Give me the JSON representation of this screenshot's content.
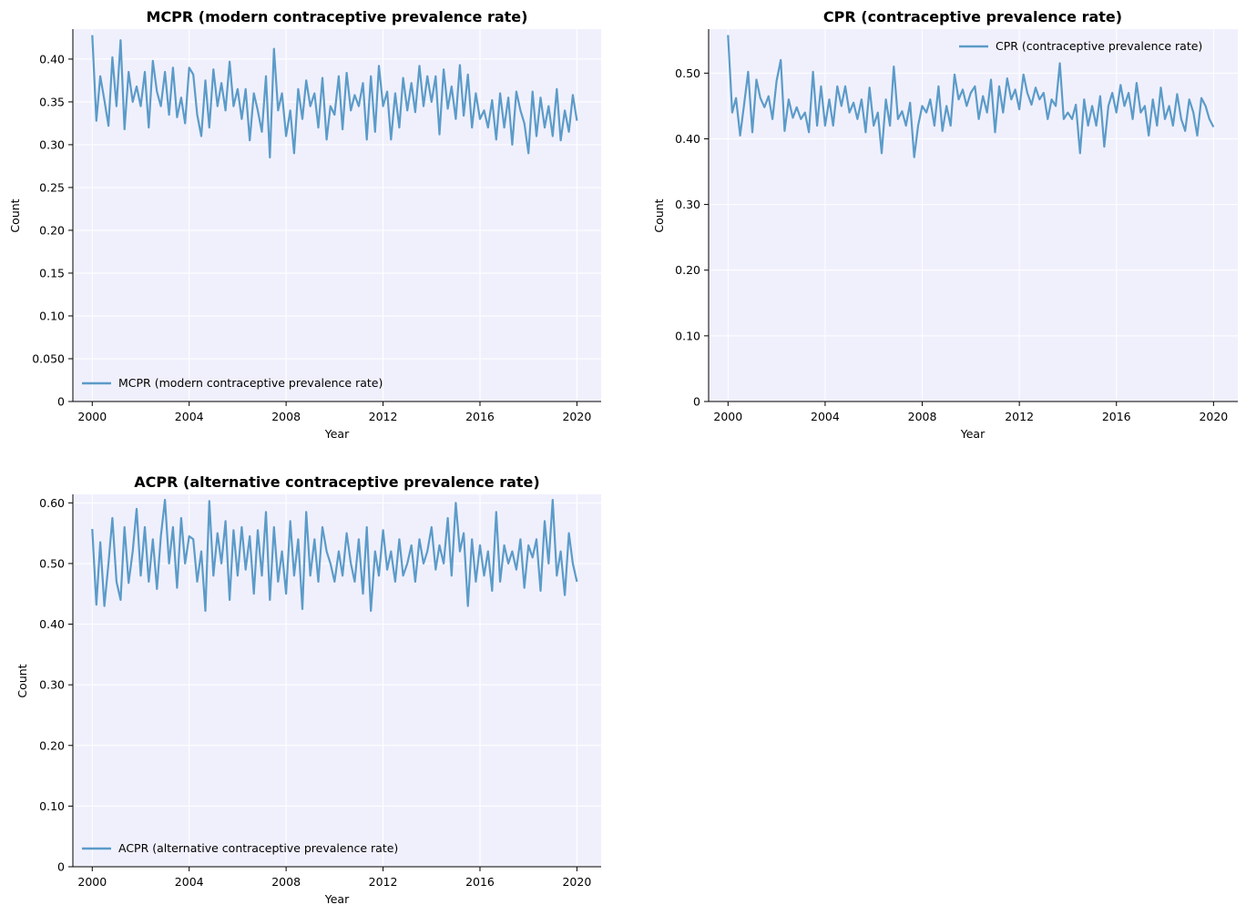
{
  "chart_data": [
    {
      "type": "line",
      "title": "MCPR (modern contraceptive prevalence rate)",
      "xlabel": "Year",
      "ylabel": "Count",
      "xlim": [
        1999.2,
        2021.0
      ],
      "ylim": [
        0,
        0.435
      ],
      "xticks": [
        2000,
        2004,
        2008,
        2012,
        2016,
        2020
      ],
      "xtick_labels": [
        "2000",
        "2004",
        "2008",
        "2012",
        "2016",
        "2020"
      ],
      "yticks": [
        0,
        0.05,
        0.1,
        0.15,
        0.2,
        0.25,
        0.3,
        0.35,
        0.4
      ],
      "ytick_labels": [
        "0",
        "0.050",
        "0.10",
        "0.15",
        "0.20",
        "0.25",
        "0.30",
        "0.35",
        "0.40"
      ],
      "legend": "MCPR (modern contraceptive prevalence rate)",
      "legend_position": "lower-left",
      "color": "#5b9bc8",
      "x": [
        2000.0,
        2000.17,
        2000.33,
        2000.5,
        2000.67,
        2000.83,
        2001.0,
        2001.17,
        2001.33,
        2001.5,
        2001.67,
        2001.83,
        2002.0,
        2002.17,
        2002.33,
        2002.5,
        2002.67,
        2002.83,
        2003.0,
        2003.17,
        2003.33,
        2003.5,
        2003.67,
        2003.83,
        2004.0,
        2004.17,
        2004.33,
        2004.5,
        2004.67,
        2004.83,
        2005.0,
        2005.17,
        2005.33,
        2005.5,
        2005.67,
        2005.83,
        2006.0,
        2006.17,
        2006.33,
        2006.5,
        2006.67,
        2006.83,
        2007.0,
        2007.17,
        2007.33,
        2007.5,
        2007.67,
        2007.83,
        2008.0,
        2008.17,
        2008.33,
        2008.5,
        2008.67,
        2008.83,
        2009.0,
        2009.17,
        2009.33,
        2009.5,
        2009.67,
        2009.83,
        2010.0,
        2010.17,
        2010.33,
        2010.5,
        2010.67,
        2010.83,
        2011.0,
        2011.17,
        2011.33,
        2011.5,
        2011.67,
        2011.83,
        2012.0,
        2012.17,
        2012.33,
        2012.5,
        2012.67,
        2012.83,
        2013.0,
        2013.17,
        2013.33,
        2013.5,
        2013.67,
        2013.83,
        2014.0,
        2014.17,
        2014.33,
        2014.5,
        2014.67,
        2014.83,
        2015.0,
        2015.17,
        2015.33,
        2015.5,
        2015.67,
        2015.83,
        2016.0,
        2016.17,
        2016.33,
        2016.5,
        2016.67,
        2016.83,
        2017.0,
        2017.17,
        2017.33,
        2017.5,
        2017.67,
        2017.83,
        2018.0,
        2018.17,
        2018.33,
        2018.5,
        2018.67,
        2018.83,
        2019.0,
        2019.17,
        2019.33,
        2019.5,
        2019.67,
        2019.83,
        2020.0
      ],
      "values": [
        0.428,
        0.328,
        0.38,
        0.352,
        0.322,
        0.402,
        0.345,
        0.422,
        0.318,
        0.385,
        0.35,
        0.368,
        0.345,
        0.385,
        0.32,
        0.398,
        0.362,
        0.345,
        0.385,
        0.335,
        0.39,
        0.332,
        0.355,
        0.325,
        0.39,
        0.382,
        0.335,
        0.31,
        0.375,
        0.32,
        0.388,
        0.345,
        0.372,
        0.34,
        0.397,
        0.345,
        0.365,
        0.33,
        0.365,
        0.305,
        0.36,
        0.34,
        0.315,
        0.38,
        0.285,
        0.412,
        0.34,
        0.36,
        0.31,
        0.34,
        0.29,
        0.365,
        0.33,
        0.375,
        0.345,
        0.36,
        0.32,
        0.378,
        0.306,
        0.345,
        0.335,
        0.38,
        0.318,
        0.384,
        0.34,
        0.358,
        0.345,
        0.372,
        0.306,
        0.38,
        0.315,
        0.392,
        0.345,
        0.362,
        0.306,
        0.36,
        0.32,
        0.378,
        0.34,
        0.372,
        0.338,
        0.392,
        0.345,
        0.38,
        0.35,
        0.38,
        0.312,
        0.388,
        0.342,
        0.368,
        0.33,
        0.393,
        0.334,
        0.382,
        0.32,
        0.36,
        0.33,
        0.34,
        0.32,
        0.352,
        0.306,
        0.36,
        0.32,
        0.355,
        0.3,
        0.362,
        0.34,
        0.325,
        0.29,
        0.362,
        0.31,
        0.355,
        0.32,
        0.345,
        0.31,
        0.365,
        0.305,
        0.34,
        0.315,
        0.358,
        0.328
      ]
    },
    {
      "type": "line",
      "title": "CPR (contraceptive prevalence rate)",
      "xlabel": "Year",
      "ylabel": "Count",
      "xlim": [
        1999.2,
        2021.0
      ],
      "ylim": [
        0,
        0.567
      ],
      "xticks": [
        2000,
        2004,
        2008,
        2012,
        2016,
        2020
      ],
      "xtick_labels": [
        "2000",
        "2004",
        "2008",
        "2012",
        "2016",
        "2020"
      ],
      "yticks": [
        0,
        0.1,
        0.2,
        0.3,
        0.4,
        0.5
      ],
      "ytick_labels": [
        "0",
        "0.10",
        "0.20",
        "0.30",
        "0.40",
        "0.50"
      ],
      "legend": "CPR (contraceptive prevalence rate)",
      "legend_position": "upper-right",
      "color": "#5b9bc8",
      "x": [
        2000.0,
        2000.17,
        2000.33,
        2000.5,
        2000.67,
        2000.83,
        2001.0,
        2001.17,
        2001.33,
        2001.5,
        2001.67,
        2001.83,
        2002.0,
        2002.17,
        2002.33,
        2002.5,
        2002.67,
        2002.83,
        2003.0,
        2003.17,
        2003.33,
        2003.5,
        2003.67,
        2003.83,
        2004.0,
        2004.17,
        2004.33,
        2004.5,
        2004.67,
        2004.83,
        2005.0,
        2005.17,
        2005.33,
        2005.5,
        2005.67,
        2005.83,
        2006.0,
        2006.17,
        2006.33,
        2006.5,
        2006.67,
        2006.83,
        2007.0,
        2007.17,
        2007.33,
        2007.5,
        2007.67,
        2007.83,
        2008.0,
        2008.17,
        2008.33,
        2008.5,
        2008.67,
        2008.83,
        2009.0,
        2009.17,
        2009.33,
        2009.5,
        2009.67,
        2009.83,
        2010.0,
        2010.17,
        2010.33,
        2010.5,
        2010.67,
        2010.83,
        2011.0,
        2011.17,
        2011.33,
        2011.5,
        2011.67,
        2011.83,
        2012.0,
        2012.17,
        2012.33,
        2012.5,
        2012.67,
        2012.83,
        2013.0,
        2013.17,
        2013.33,
        2013.5,
        2013.67,
        2013.83,
        2014.0,
        2014.17,
        2014.33,
        2014.5,
        2014.67,
        2014.83,
        2015.0,
        2015.17,
        2015.33,
        2015.5,
        2015.67,
        2015.83,
        2016.0,
        2016.17,
        2016.33,
        2016.5,
        2016.67,
        2016.83,
        2017.0,
        2017.17,
        2017.33,
        2017.5,
        2017.67,
        2017.83,
        2018.0,
        2018.17,
        2018.33,
        2018.5,
        2018.67,
        2018.83,
        2019.0,
        2019.17,
        2019.33,
        2019.5,
        2019.67,
        2019.83,
        2020.0
      ],
      "values": [
        0.558,
        0.44,
        0.462,
        0.405,
        0.455,
        0.502,
        0.41,
        0.49,
        0.462,
        0.448,
        0.465,
        0.43,
        0.488,
        0.52,
        0.412,
        0.46,
        0.432,
        0.448,
        0.43,
        0.44,
        0.41,
        0.502,
        0.42,
        0.48,
        0.42,
        0.46,
        0.42,
        0.48,
        0.45,
        0.48,
        0.44,
        0.455,
        0.43,
        0.46,
        0.41,
        0.478,
        0.42,
        0.44,
        0.378,
        0.46,
        0.42,
        0.51,
        0.43,
        0.442,
        0.42,
        0.455,
        0.372,
        0.42,
        0.45,
        0.44,
        0.46,
        0.42,
        0.48,
        0.412,
        0.45,
        0.42,
        0.498,
        0.46,
        0.475,
        0.45,
        0.47,
        0.48,
        0.43,
        0.465,
        0.44,
        0.49,
        0.41,
        0.48,
        0.44,
        0.492,
        0.46,
        0.475,
        0.445,
        0.498,
        0.47,
        0.452,
        0.478,
        0.46,
        0.47,
        0.43,
        0.46,
        0.45,
        0.515,
        0.43,
        0.44,
        0.43,
        0.452,
        0.378,
        0.46,
        0.42,
        0.45,
        0.42,
        0.465,
        0.388,
        0.45,
        0.47,
        0.44,
        0.482,
        0.45,
        0.47,
        0.43,
        0.485,
        0.44,
        0.45,
        0.405,
        0.46,
        0.42,
        0.478,
        0.43,
        0.45,
        0.42,
        0.468,
        0.43,
        0.412,
        0.46,
        0.44,
        0.405,
        0.462,
        0.45,
        0.43,
        0.418
      ]
    },
    {
      "type": "line",
      "title": "ACPR (alternative contraceptive prevalence rate)",
      "xlabel": "Year",
      "ylabel": "Count",
      "xlim": [
        1999.2,
        2021.0
      ],
      "ylim": [
        0,
        0.614
      ],
      "xticks": [
        2000,
        2004,
        2008,
        2012,
        2016,
        2020
      ],
      "xtick_labels": [
        "2000",
        "2004",
        "2008",
        "2012",
        "2016",
        "2020"
      ],
      "yticks": [
        0,
        0.1,
        0.2,
        0.3,
        0.4,
        0.5,
        0.6
      ],
      "ytick_labels": [
        "0",
        "0.10",
        "0.20",
        "0.30",
        "0.40",
        "0.50",
        "0.60"
      ],
      "legend": "ACPR (alternative contraceptive prevalence rate)",
      "legend_position": "lower-left",
      "color": "#5b9bc8",
      "x": [
        2000.0,
        2000.17,
        2000.33,
        2000.5,
        2000.67,
        2000.83,
        2001.0,
        2001.17,
        2001.33,
        2001.5,
        2001.67,
        2001.83,
        2002.0,
        2002.17,
        2002.33,
        2002.5,
        2002.67,
        2002.83,
        2003.0,
        2003.17,
        2003.33,
        2003.5,
        2003.67,
        2003.83,
        2004.0,
        2004.17,
        2004.33,
        2004.5,
        2004.67,
        2004.83,
        2005.0,
        2005.17,
        2005.33,
        2005.5,
        2005.67,
        2005.83,
        2006.0,
        2006.17,
        2006.33,
        2006.5,
        2006.67,
        2006.83,
        2007.0,
        2007.17,
        2007.33,
        2007.5,
        2007.67,
        2007.83,
        2008.0,
        2008.17,
        2008.33,
        2008.5,
        2008.67,
        2008.83,
        2009.0,
        2009.17,
        2009.33,
        2009.5,
        2009.67,
        2009.83,
        2010.0,
        2010.17,
        2010.33,
        2010.5,
        2010.67,
        2010.83,
        2011.0,
        2011.17,
        2011.33,
        2011.5,
        2011.67,
        2011.83,
        2012.0,
        2012.17,
        2012.33,
        2012.5,
        2012.67,
        2012.83,
        2013.0,
        2013.17,
        2013.33,
        2013.5,
        2013.67,
        2013.83,
        2014.0,
        2014.17,
        2014.33,
        2014.5,
        2014.67,
        2014.83,
        2015.0,
        2015.17,
        2015.33,
        2015.5,
        2015.67,
        2015.83,
        2016.0,
        2016.17,
        2016.33,
        2016.5,
        2016.67,
        2016.83,
        2017.0,
        2017.17,
        2017.33,
        2017.5,
        2017.67,
        2017.83,
        2018.0,
        2018.17,
        2018.33,
        2018.5,
        2018.67,
        2018.83,
        2019.0,
        2019.17,
        2019.33,
        2019.5,
        2019.67,
        2019.83,
        2020.0
      ],
      "values": [
        0.557,
        0.432,
        0.535,
        0.43,
        0.5,
        0.575,
        0.47,
        0.44,
        0.56,
        0.468,
        0.52,
        0.59,
        0.48,
        0.56,
        0.47,
        0.54,
        0.458,
        0.545,
        0.605,
        0.5,
        0.56,
        0.46,
        0.575,
        0.5,
        0.545,
        0.54,
        0.47,
        0.52,
        0.422,
        0.603,
        0.48,
        0.55,
        0.5,
        0.57,
        0.44,
        0.555,
        0.48,
        0.56,
        0.49,
        0.545,
        0.45,
        0.555,
        0.48,
        0.585,
        0.44,
        0.56,
        0.47,
        0.52,
        0.45,
        0.57,
        0.48,
        0.54,
        0.425,
        0.585,
        0.48,
        0.54,
        0.47,
        0.56,
        0.52,
        0.5,
        0.47,
        0.52,
        0.48,
        0.55,
        0.5,
        0.47,
        0.54,
        0.45,
        0.56,
        0.422,
        0.52,
        0.48,
        0.555,
        0.49,
        0.52,
        0.47,
        0.54,
        0.48,
        0.5,
        0.53,
        0.47,
        0.54,
        0.5,
        0.52,
        0.56,
        0.49,
        0.53,
        0.5,
        0.575,
        0.48,
        0.6,
        0.52,
        0.55,
        0.43,
        0.54,
        0.47,
        0.53,
        0.48,
        0.52,
        0.455,
        0.585,
        0.47,
        0.53,
        0.5,
        0.52,
        0.49,
        0.54,
        0.46,
        0.53,
        0.51,
        0.54,
        0.455,
        0.57,
        0.5,
        0.605,
        0.48,
        0.52,
        0.448,
        0.55,
        0.5,
        0.47
      ]
    }
  ]
}
